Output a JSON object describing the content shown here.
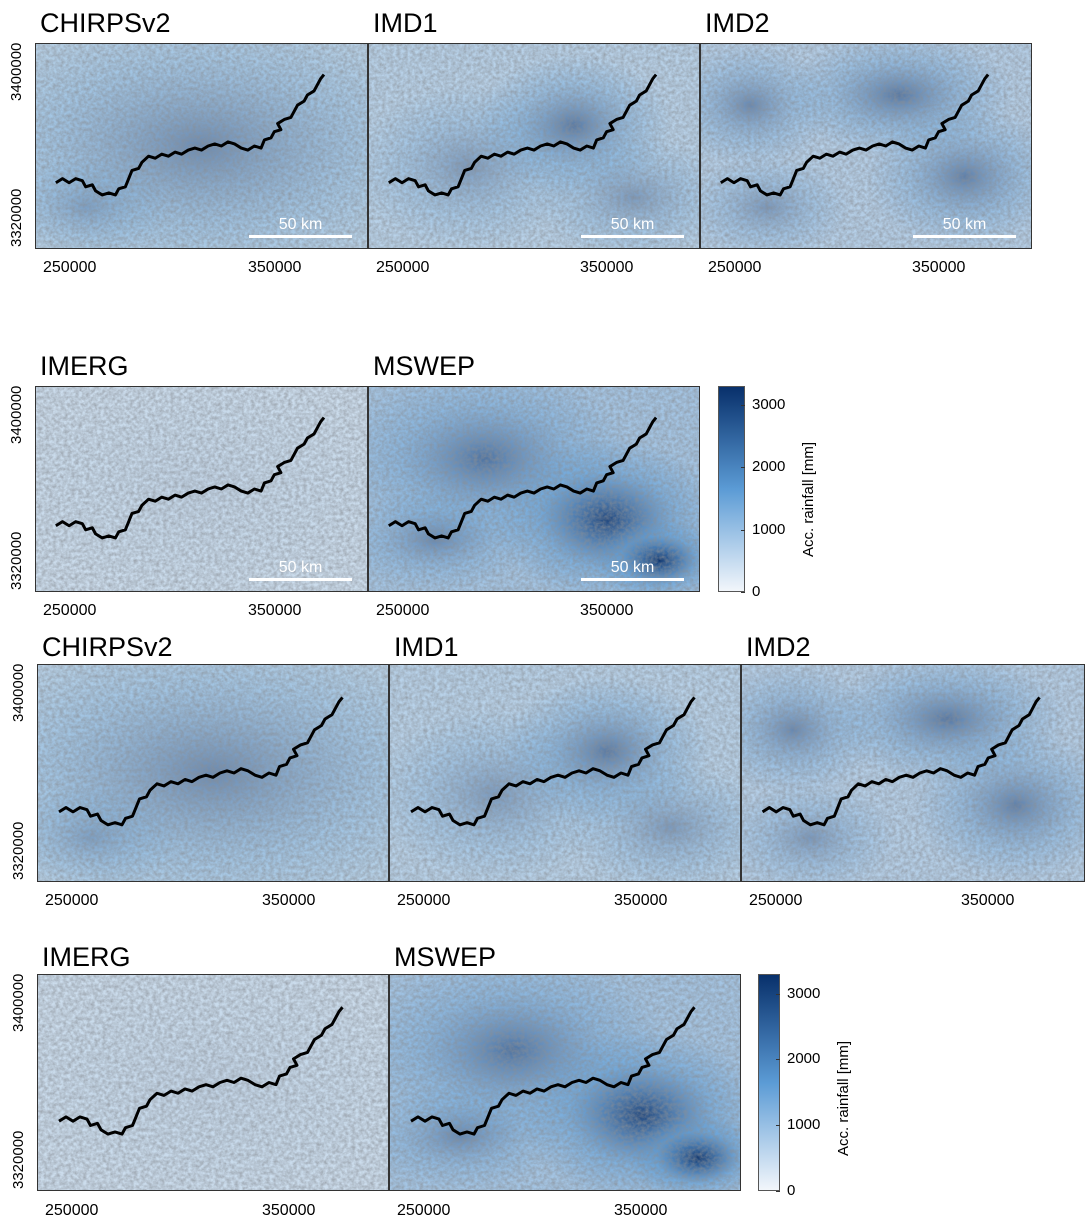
{
  "figure_groups": [
    {
      "id": "top",
      "rows": [
        {
          "panels": [
            {
              "title": "CHIRPSv2",
              "ylabels": [
                "3400000",
                "3320000"
              ],
              "xlabels": [
                "250000",
                "350000"
              ],
              "scalebar": "50 km",
              "intensity": 0.35,
              "style": "chirps"
            },
            {
              "title": "IMD1",
              "ylabels": [],
              "xlabels": [
                "250000",
                "350000"
              ],
              "scalebar": "50 km",
              "intensity": 0.45,
              "style": "imd1"
            },
            {
              "title": "IMD2",
              "ylabels": [],
              "xlabels": [
                "250000",
                "350000"
              ],
              "scalebar": "50 km",
              "intensity": 0.55,
              "style": "imd2"
            }
          ]
        },
        {
          "panels": [
            {
              "title": "IMERG",
              "ylabels": [
                "3400000",
                "3320000"
              ],
              "xlabels": [
                "250000",
                "350000"
              ],
              "scalebar": "50 km",
              "intensity": 0.05,
              "style": "imerg"
            },
            {
              "title": "MSWEP",
              "ylabels": [],
              "xlabels": [
                "250000",
                "350000"
              ],
              "scalebar": "50 km",
              "intensity": 0.9,
              "style": "mswep"
            }
          ],
          "colorbar": {
            "label": "Acc. rainfall [mm]",
            "ticks": [
              "3000",
              "2000",
              "1000",
              "0"
            ],
            "max": 3300
          }
        }
      ]
    },
    {
      "id": "bottom",
      "rows": [
        {
          "panels": [
            {
              "title": "CHIRPSv2",
              "ylabels": [
                "3400000",
                "3320000"
              ],
              "xlabels": [
                "250000",
                "350000"
              ],
              "scalebar": "",
              "intensity": 0.35,
              "style": "chirps"
            },
            {
              "title": "IMD1",
              "ylabels": [],
              "xlabels": [
                "250000",
                "350000"
              ],
              "scalebar": "",
              "intensity": 0.45,
              "style": "imd1"
            },
            {
              "title": "IMD2",
              "ylabels": [],
              "xlabels": [
                "250000",
                "350000"
              ],
              "scalebar": "",
              "intensity": 0.55,
              "style": "imd2"
            }
          ]
        },
        {
          "panels": [
            {
              "title": "IMERG",
              "ylabels": [
                "3400000",
                "3320000"
              ],
              "xlabels": [
                "250000",
                "350000"
              ],
              "scalebar": "",
              "intensity": 0.05,
              "style": "imerg"
            },
            {
              "title": "MSWEP",
              "ylabels": [],
              "xlabels": [
                "250000",
                "350000"
              ],
              "scalebar": "",
              "intensity": 0.9,
              "style": "mswep"
            }
          ],
          "colorbar": {
            "label": "Acc. rainfall [mm]",
            "ticks": [
              "3000",
              "2000",
              "1000",
              "0"
            ],
            "max": 3300
          }
        }
      ]
    }
  ],
  "colors": {
    "low": "#f2f6fb",
    "mid": "#5b9bd5",
    "high": "#08306b",
    "river": "#000000",
    "scalebar": "#ffffff"
  }
}
